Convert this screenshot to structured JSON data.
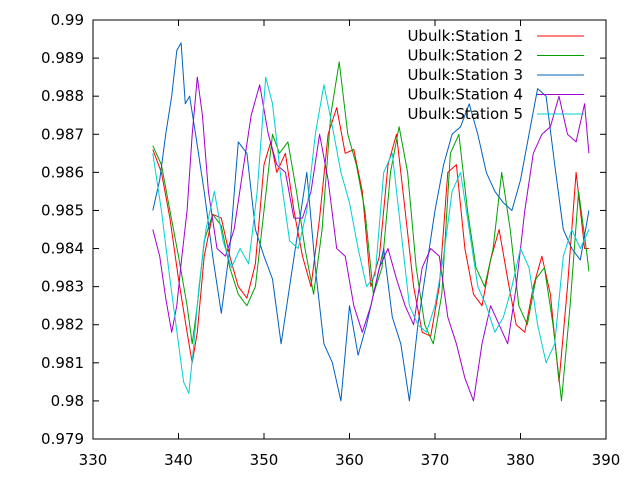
{
  "chart_data": {
    "type": "line",
    "title": "",
    "xlabel": "",
    "ylabel": "",
    "xlim": [
      330,
      390
    ],
    "ylim": [
      0.979,
      0.99
    ],
    "x_ticks": [
      330,
      340,
      350,
      360,
      370,
      380,
      390
    ],
    "x_tick_labels": [
      "330",
      "340",
      "350",
      "360",
      "370",
      "380",
      "390"
    ],
    "y_ticks": [
      0.979,
      0.98,
      0.981,
      0.982,
      0.983,
      0.984,
      0.985,
      0.986,
      0.987,
      0.988,
      0.989,
      0.99
    ],
    "y_tick_labels": [
      "0.979",
      "0.98",
      "0.981",
      "0.982",
      "0.983",
      "0.984",
      "0.985",
      "0.986",
      "0.987",
      "0.988",
      "0.989",
      "0.99"
    ],
    "grid": false,
    "legend_position": "top-right",
    "series": [
      {
        "name": "Ubulk:Station 1",
        "color": "#ff0000",
        "x": [
          337.0,
          338.0,
          339.0,
          340.0,
          341.0,
          341.6,
          342.2,
          343.0,
          344.0,
          345.0,
          346.0,
          347.0,
          348.0,
          349.0,
          350.0,
          350.8,
          351.5,
          352.5,
          353.5,
          354.5,
          355.5,
          356.5,
          357.5,
          358.5,
          359.5,
          360.5,
          361.5,
          362.5,
          363.5,
          364.5,
          365.5,
          366.5,
          367.5,
          368.5,
          369.5,
          370.5,
          371.5,
          372.5,
          373.5,
          374.5,
          375.5,
          376.5,
          377.5,
          378.5,
          379.5,
          380.5,
          381.5,
          382.5,
          383.5,
          384.5,
          385.5,
          386.5,
          387.5,
          388.0
        ],
        "y": [
          0.9866,
          0.986,
          0.9848,
          0.9832,
          0.9818,
          0.981,
          0.9818,
          0.9838,
          0.9849,
          0.9848,
          0.9838,
          0.983,
          0.9827,
          0.9836,
          0.9862,
          0.9868,
          0.986,
          0.9865,
          0.985,
          0.9838,
          0.983,
          0.9848,
          0.987,
          0.9877,
          0.9865,
          0.9866,
          0.9855,
          0.983,
          0.9838,
          0.9862,
          0.987,
          0.985,
          0.983,
          0.9818,
          0.9817,
          0.983,
          0.986,
          0.9862,
          0.984,
          0.9828,
          0.9825,
          0.9837,
          0.9845,
          0.9832,
          0.982,
          0.9818,
          0.983,
          0.9838,
          0.9828,
          0.9805,
          0.983,
          0.986,
          0.984,
          0.984
        ]
      },
      {
        "name": "Ubulk:Station 2",
        "color": "#00a000",
        "x": [
          337.0,
          338.0,
          339.0,
          340.0,
          341.0,
          341.6,
          342.2,
          343.0,
          344.0,
          345.0,
          346.0,
          347.0,
          348.0,
          349.0,
          350.0,
          351.0,
          351.8,
          352.8,
          353.8,
          354.8,
          355.8,
          356.8,
          357.8,
          358.8,
          359.8,
          360.8,
          361.8,
          362.8,
          363.8,
          364.8,
          365.8,
          366.8,
          367.8,
          368.8,
          369.8,
          370.8,
          371.8,
          372.8,
          373.8,
          374.8,
          375.8,
          376.8,
          377.8,
          378.8,
          379.8,
          380.8,
          381.8,
          382.8,
          383.8,
          384.8,
          385.8,
          386.8,
          387.8,
          388.0
        ],
        "y": [
          0.9867,
          0.9862,
          0.985,
          0.9838,
          0.9825,
          0.9815,
          0.9825,
          0.9842,
          0.9849,
          0.9846,
          0.9835,
          0.9828,
          0.9825,
          0.983,
          0.985,
          0.987,
          0.9865,
          0.9868,
          0.9855,
          0.984,
          0.9828,
          0.9845,
          0.9875,
          0.9889,
          0.987,
          0.9862,
          0.985,
          0.9828,
          0.9835,
          0.986,
          0.9872,
          0.986,
          0.9835,
          0.982,
          0.9815,
          0.9828,
          0.9865,
          0.987,
          0.985,
          0.9835,
          0.983,
          0.984,
          0.986,
          0.9845,
          0.9825,
          0.982,
          0.9832,
          0.9835,
          0.982,
          0.98,
          0.9825,
          0.9855,
          0.9838,
          0.9834
        ]
      },
      {
        "name": "Ubulk:Station 3",
        "color": "#0060c0",
        "x": [
          337.0,
          337.8,
          338.5,
          339.2,
          339.8,
          340.3,
          340.8,
          341.3,
          342.0,
          343.0,
          344.0,
          345.0,
          346.0,
          347.0,
          348.0,
          349.0,
          350.0,
          351.0,
          352.0,
          353.0,
          354.0,
          355.0,
          356.0,
          357.0,
          358.0,
          359.0,
          360.0,
          361.0,
          362.0,
          363.0,
          364.0,
          365.0,
          366.0,
          367.0,
          368.0,
          369.0,
          370.0,
          371.0,
          372.0,
          373.0,
          374.0,
          375.0,
          376.0,
          377.0,
          378.0,
          379.0,
          380.0,
          381.0,
          382.0,
          383.0,
          384.0,
          385.0,
          386.0,
          387.0,
          388.0
        ],
        "y": [
          0.985,
          0.9858,
          0.987,
          0.988,
          0.9892,
          0.9894,
          0.9878,
          0.988,
          0.987,
          0.9855,
          0.9838,
          0.9823,
          0.984,
          0.9868,
          0.9865,
          0.9845,
          0.9838,
          0.9832,
          0.9815,
          0.983,
          0.9845,
          0.986,
          0.9835,
          0.9815,
          0.981,
          0.98,
          0.9825,
          0.9812,
          0.982,
          0.983,
          0.984,
          0.9822,
          0.9815,
          0.98,
          0.982,
          0.9835,
          0.985,
          0.9862,
          0.987,
          0.9872,
          0.9878,
          0.987,
          0.986,
          0.9855,
          0.9852,
          0.985,
          0.9858,
          0.987,
          0.9882,
          0.988,
          0.9862,
          0.9845,
          0.984,
          0.9837,
          0.985
        ]
      },
      {
        "name": "Ubulk:Station 4",
        "color": "#a000d0",
        "x": [
          337.0,
          337.8,
          338.5,
          339.2,
          339.8,
          340.4,
          341.0,
          341.6,
          342.2,
          342.8,
          343.5,
          344.5,
          345.5,
          346.5,
          347.5,
          348.5,
          349.5,
          350.5,
          351.5,
          352.5,
          353.5,
          354.5,
          355.5,
          356.5,
          357.5,
          358.5,
          359.5,
          360.5,
          361.5,
          362.5,
          363.5,
          364.5,
          365.5,
          366.5,
          367.5,
          368.5,
          369.5,
          370.5,
          371.5,
          372.5,
          373.5,
          374.5,
          375.5,
          376.5,
          377.5,
          378.5,
          379.5,
          380.5,
          381.5,
          382.5,
          383.5,
          384.5,
          385.5,
          386.5,
          387.5,
          388.0
        ],
        "y": [
          0.9845,
          0.9838,
          0.9827,
          0.9818,
          0.9825,
          0.9838,
          0.985,
          0.987,
          0.9885,
          0.9875,
          0.9855,
          0.984,
          0.9838,
          0.9845,
          0.986,
          0.9875,
          0.9883,
          0.987,
          0.9862,
          0.986,
          0.9848,
          0.9848,
          0.9855,
          0.987,
          0.9858,
          0.984,
          0.9838,
          0.9825,
          0.9818,
          0.9825,
          0.9835,
          0.984,
          0.9832,
          0.9825,
          0.982,
          0.9835,
          0.984,
          0.9838,
          0.9822,
          0.9815,
          0.9806,
          0.98,
          0.9815,
          0.9825,
          0.982,
          0.9815,
          0.983,
          0.985,
          0.9865,
          0.987,
          0.9872,
          0.988,
          0.987,
          0.9868,
          0.9878,
          0.9865
        ]
      },
      {
        "name": "Ubulk:Station 5",
        "color": "#00d0d0",
        "x": [
          337.0,
          338.0,
          339.0,
          340.0,
          340.6,
          341.2,
          341.8,
          342.4,
          343.2,
          344.2,
          345.2,
          346.2,
          347.2,
          348.2,
          349.2,
          350.2,
          351.0,
          352.0,
          353.0,
          354.0,
          355.0,
          356.0,
          357.0,
          358.0,
          359.0,
          360.0,
          361.0,
          362.0,
          363.0,
          364.0,
          365.0,
          366.0,
          367.0,
          368.0,
          369.0,
          370.0,
          371.0,
          372.0,
          373.0,
          374.0,
          375.0,
          376.0,
          377.0,
          378.0,
          379.0,
          380.0,
          381.0,
          382.0,
          383.0,
          384.0,
          385.0,
          386.0,
          387.0,
          388.0
        ],
        "y": [
          0.9865,
          0.985,
          0.9832,
          0.9815,
          0.9805,
          0.9802,
          0.9815,
          0.983,
          0.9845,
          0.9855,
          0.9842,
          0.9835,
          0.984,
          0.9836,
          0.9855,
          0.9885,
          0.9878,
          0.9858,
          0.9842,
          0.984,
          0.985,
          0.987,
          0.9883,
          0.9872,
          0.986,
          0.9852,
          0.984,
          0.983,
          0.9833,
          0.986,
          0.9865,
          0.9845,
          0.9825,
          0.982,
          0.9818,
          0.9825,
          0.9838,
          0.9855,
          0.986,
          0.9845,
          0.983,
          0.9825,
          0.9818,
          0.9822,
          0.983,
          0.984,
          0.9835,
          0.982,
          0.981,
          0.9815,
          0.9838,
          0.9845,
          0.984,
          0.9845
        ]
      }
    ]
  }
}
